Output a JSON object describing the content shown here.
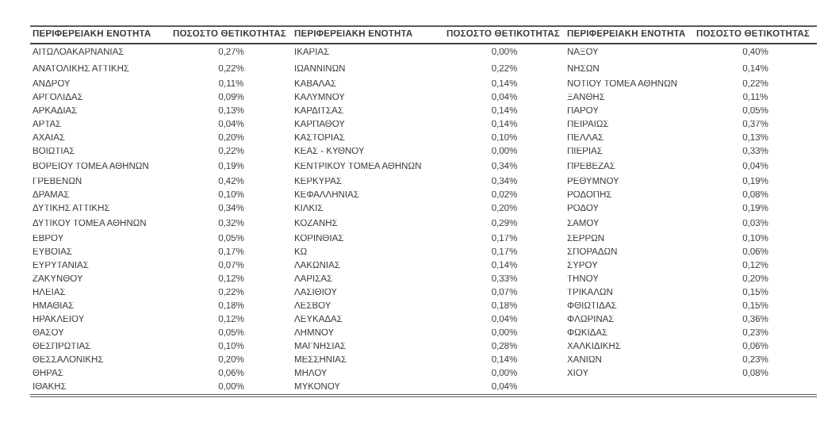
{
  "table": {
    "header": {
      "region": "ΠΕΡΙΦΕΡΕΙΑΚΗ ΕΝΟΤΗΤΑ",
      "positivity": "ΠΟΣΟΣΤΟ ΘΕΤΙΚΟΤΗΤΑΣ"
    },
    "rows": [
      {
        "c1": "ΑΙΤΩΛΟΑΚΑΡΝΑΝΙΑΣ",
        "v1": "0,27%",
        "c2": "ΙΚΑΡΙΑΣ",
        "v2": "0,00%",
        "c3": "ΝΑΞΟΥ",
        "v3": "0,40%"
      },
      {
        "c1": "ΑΝΑΤΟΛΙΚΗΣ ΑΤΤΙΚΗΣ",
        "v1": "0,22%",
        "c2": "ΙΩΑΝΝΙΝΩΝ",
        "v2": "0,22%",
        "c3": "ΝΗΣΩΝ",
        "v3": "0,14%"
      },
      {
        "c1": "ΑΝΔΡΟΥ",
        "v1": "0,11%",
        "c2": "ΚΑΒΑΛΑΣ",
        "v2": "0,14%",
        "c3": "ΝΟΤΙΟΥ ΤΟΜΕΑ ΑΘΗΝΩΝ",
        "v3": "0,22%"
      },
      {
        "c1": "ΑΡΓΟΛΙΔΑΣ",
        "v1": "0,09%",
        "c2": "ΚΑΛΥΜΝΟΥ",
        "v2": "0,04%",
        "c3": "ΞΑΝΘΗΣ",
        "v3": "0,11%"
      },
      {
        "c1": "ΑΡΚΑΔΙΑΣ",
        "v1": "0,13%",
        "c2": "ΚΑΡΔΙΤΣΑΣ",
        "v2": "0,14%",
        "c3": "ΠΑΡΟΥ",
        "v3": "0,05%"
      },
      {
        "c1": "ΑΡΤΑΣ",
        "v1": "0,04%",
        "c2": "ΚΑΡΠΑΘΟΥ",
        "v2": "0,14%",
        "c3": "ΠΕΙΡΑΙΩΣ",
        "v3": "0,37%"
      },
      {
        "c1": "ΑΧΑΪΑΣ",
        "v1": "0,20%",
        "c2": "ΚΑΣΤΟΡΙΑΣ",
        "v2": "0,10%",
        "c3": "ΠΕΛΛΑΣ",
        "v3": "0,13%"
      },
      {
        "c1": "ΒΟΙΩΤΙΑΣ",
        "v1": "0,22%",
        "c2": "ΚΕΑΣ - ΚΥΘΝΟΥ",
        "v2": "0,00%",
        "c3": "ΠΙΕΡΙΑΣ",
        "v3": "0,33%"
      },
      {
        "c1": "ΒΟΡΕΙΟΥ ΤΟΜΕΑ ΑΘΗΝΩΝ",
        "v1": "0,19%",
        "c2": "ΚΕΝΤΡΙΚΟΥ ΤΟΜΕΑ ΑΘΗΝΩΝ",
        "v2": "0,34%",
        "c3": "ΠΡΕΒΕΖΑΣ",
        "v3": "0,04%"
      },
      {
        "c1": "ΓΡΕΒΕΝΩΝ",
        "v1": "0,42%",
        "c2": "ΚΕΡΚΥΡΑΣ",
        "v2": "0,34%",
        "c3": "ΡΕΘΥΜΝΟΥ",
        "v3": "0,19%"
      },
      {
        "c1": "ΔΡΑΜΑΣ",
        "v1": "0,10%",
        "c2": "ΚΕΦΑΛΛΗΝΙΑΣ",
        "v2": "0,02%",
        "c3": "ΡΟΔΟΠΗΣ",
        "v3": "0,08%"
      },
      {
        "c1": "ΔΥΤΙΚΗΣ ΑΤΤΙΚΗΣ",
        "v1": "0,34%",
        "c2": "ΚΙΛΚΙΣ",
        "v2": "0,20%",
        "c3": "ΡΟΔΟΥ",
        "v3": "0,19%"
      },
      {
        "c1": "ΔΥΤΙΚΟΥ ΤΟΜΕΑ ΑΘΗΝΩΝ",
        "v1": "0,32%",
        "c2": "ΚΟΖΑΝΗΣ",
        "v2": "0,29%",
        "c3": "ΣΑΜΟΥ",
        "v3": "0,03%"
      },
      {
        "c1": "ΕΒΡΟΥ",
        "v1": "0,05%",
        "c2": "ΚΟΡΙΝΘΙΑΣ",
        "v2": "0,17%",
        "c3": "ΣΕΡΡΩΝ",
        "v3": "0,10%"
      },
      {
        "c1": "ΕΥΒΟΙΑΣ",
        "v1": "0,17%",
        "c2": "ΚΩ",
        "v2": "0,17%",
        "c3": "ΣΠΟΡΑΔΩΝ",
        "v3": "0,06%"
      },
      {
        "c1": "ΕΥΡΥΤΑΝΙΑΣ",
        "v1": "0,07%",
        "c2": "ΛΑΚΩΝΙΑΣ",
        "v2": "0,14%",
        "c3": "ΣΥΡΟΥ",
        "v3": "0,12%"
      },
      {
        "c1": "ΖΑΚΥΝΘΟΥ",
        "v1": "0,12%",
        "c2": "ΛΑΡΙΣΑΣ",
        "v2": "0,33%",
        "c3": "ΤΗΝΟΥ",
        "v3": "0,20%"
      },
      {
        "c1": "ΗΛΕΙΑΣ",
        "v1": "0,22%",
        "c2": "ΛΑΣΙΘΙΟΥ",
        "v2": "0,07%",
        "c3": "ΤΡΙΚΑΛΩΝ",
        "v3": "0,15%"
      },
      {
        "c1": "ΗΜΑΘΙΑΣ",
        "v1": "0,18%",
        "c2": "ΛΕΣΒΟΥ",
        "v2": "0,18%",
        "c3": "ΦΘΙΩΤΙΔΑΣ",
        "v3": "0,15%"
      },
      {
        "c1": "ΗΡΑΚΛΕΙΟΥ",
        "v1": "0,12%",
        "c2": "ΛΕΥΚΑΔΑΣ",
        "v2": "0,04%",
        "c3": "ΦΛΩΡΙΝΑΣ",
        "v3": "0,36%"
      },
      {
        "c1": "ΘΑΣΟΥ",
        "v1": "0,05%",
        "c2": "ΛΗΜΝΟΥ",
        "v2": "0,00%",
        "c3": "ΦΩΚΙΔΑΣ",
        "v3": "0,23%"
      },
      {
        "c1": "ΘΕΣΠΡΩΤΙΑΣ",
        "v1": "0,10%",
        "c2": "ΜΑΓΝΗΣΙΑΣ",
        "v2": "0,28%",
        "c3": "ΧΑΛΚΙΔΙΚΗΣ",
        "v3": "0,06%"
      },
      {
        "c1": "ΘΕΣΣΑΛΟΝΙΚΗΣ",
        "v1": "0,20%",
        "c2": "ΜΕΣΣΗΝΙΑΣ",
        "v2": "0,14%",
        "c3": "ΧΑΝΙΩΝ",
        "v3": "0,23%"
      },
      {
        "c1": "ΘΗΡΑΣ",
        "v1": "0,06%",
        "c2": "ΜΗΛΟΥ",
        "v2": "0,00%",
        "c3": "ΧΙΟΥ",
        "v3": "0,08%"
      },
      {
        "c1": "ΙΘΑΚΗΣ",
        "v1": "0,00%",
        "c2": "ΜΥΚΟΝΟΥ",
        "v2": "0,04%",
        "c3": "",
        "v3": ""
      }
    ]
  }
}
